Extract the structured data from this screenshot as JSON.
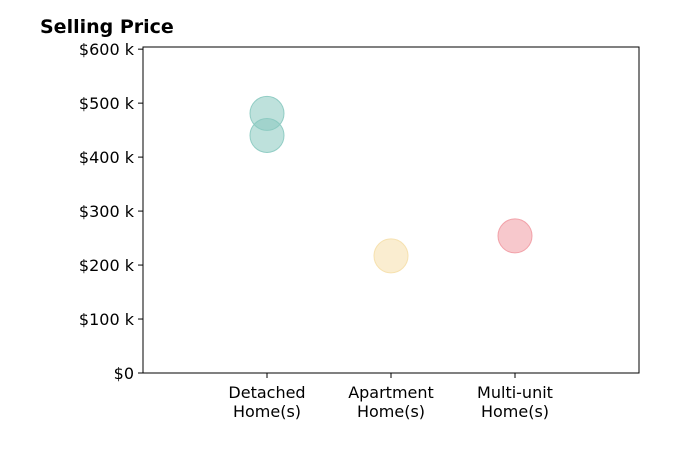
{
  "chart_data": {
    "type": "scatter",
    "title": "Selling Price",
    "xlabel": "",
    "ylabel": "",
    "categories": [
      [
        "Detached",
        "Home(s)"
      ],
      [
        "Apartment",
        "Home(s)"
      ],
      [
        "Multi-unit",
        "Home(s)"
      ]
    ],
    "yticks": [
      0,
      100000,
      200000,
      300000,
      400000,
      500000,
      600000
    ],
    "ytick_labels": [
      "$0",
      "$100 k",
      "$200 k",
      "$300 k",
      "$400 k",
      "$500 k",
      "$600 k"
    ],
    "ylim": [
      0,
      604000
    ],
    "grid": false,
    "points": [
      {
        "category": 0,
        "value": 481000,
        "color": "#88c9c0"
      },
      {
        "category": 0,
        "value": 440000,
        "color": "#88c9c0"
      },
      {
        "category": 1,
        "value": 217000,
        "color": "#f5dfaa"
      },
      {
        "category": 2,
        "value": 254000,
        "color": "#f19aa2"
      }
    ],
    "marker_opacity": 0.55
  }
}
